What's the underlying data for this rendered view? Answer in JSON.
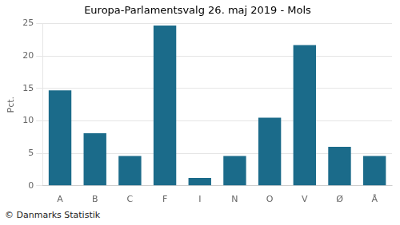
{
  "chart_data": {
    "type": "bar",
    "title": "Europa-Parlamentsvalg 26. maj 2019 - Mols",
    "categories": [
      "A",
      "B",
      "C",
      "F",
      "I",
      "N",
      "O",
      "V",
      "Ø",
      "Å"
    ],
    "values": [
      14.7,
      8.1,
      4.6,
      24.7,
      1.2,
      4.6,
      10.5,
      21.7,
      6.0,
      4.6
    ],
    "color": "#1b6b8a",
    "ylabel": "Pct.",
    "ylim": [
      0,
      25
    ],
    "yticks": [
      0,
      5,
      10,
      15,
      20,
      25
    ],
    "grid": true,
    "annotations": [
      "© Danmarks Statistik"
    ]
  }
}
